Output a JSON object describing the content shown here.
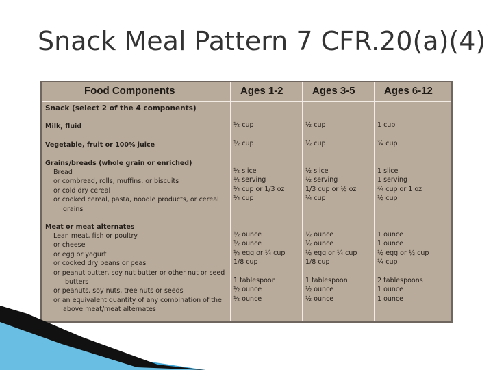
{
  "title": "Snack  Meal Pattern 7 CFR.20(a)(4)",
  "table": {
    "headers": [
      "Food Components",
      "Ages 1-2",
      "Ages 3-5",
      "Ages 6-12"
    ],
    "section_title": "Snack (select 2 of the 4 components)",
    "milk": {
      "label": "Milk, fluid",
      "a12": "½ cup",
      "a35": "½ cup",
      "a612": "1 cup"
    },
    "veg": {
      "label": "Vegetable, fruit or 100% juice",
      "a12": "½ cup",
      "a35": "½ cup",
      "a612": "¾ cup"
    },
    "grains": {
      "label": "Grains/breads (whole grain or enriched)",
      "items": [
        "Bread",
        "or cornbread, rolls, muffins, or biscuits",
        "or cold dry cereal",
        "or cooked cereal, pasta, noodle products, or cereal",
        "grains"
      ],
      "a12": [
        "½ slice",
        "½ serving",
        "¼ cup or 1/3 oz",
        "¼ cup"
      ],
      "a35": [
        "½ slice",
        "½ serving",
        "1/3 cup or ½ oz",
        "¼ cup"
      ],
      "a612": [
        "1 slice",
        "1 serving",
        "¾ cup or 1 oz",
        "½ cup"
      ]
    },
    "meat": {
      "label": "Meat or meat alternates",
      "items": [
        "Lean meat, fish or poultry",
        "or cheese",
        "or egg or yogurt",
        "or cooked dry beans or peas",
        "or peanut butter, soy nut butter or other nut  or seed",
        "butters",
        "or peanuts, soy nuts, tree nuts or seeds",
        "or an equivalent quantity of any combination of the",
        "above meat/meat alternates"
      ],
      "a12": [
        "½ ounce",
        "½ ounce",
        "½ egg or ¼ cup",
        "1/8 cup",
        "",
        "1 tablespoon",
        "½ ounce",
        "½ ounce"
      ],
      "a35": [
        "½ ounce",
        "½ ounce",
        "½ egg or ¼ cup",
        "1/8 cup",
        "",
        "1 tablespoon",
        "½ ounce",
        "½ ounce"
      ],
      "a612": [
        "1 ounce",
        "1 ounce",
        "½ egg or ½ cup",
        "¼ cup",
        "",
        "2 tablespoons",
        "1 ounce",
        "1 ounce"
      ]
    }
  }
}
